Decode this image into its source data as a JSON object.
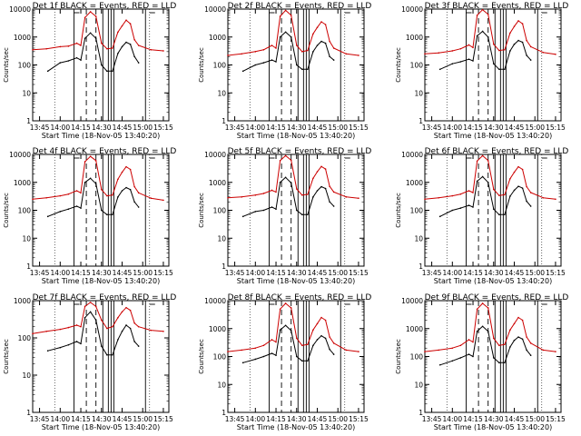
{
  "chart_data": [
    {
      "type": "line",
      "title": "Det 1f BLACK = Events, RED = LLD",
      "xlabel": "Start Time (18-Nov-05 13:40:20)",
      "ylabel": "Counts/sec",
      "xticks": [
        "13:45",
        "14:00",
        "14:15",
        "14:30",
        "14:45",
        "15:00",
        "15:15"
      ],
      "yticks": [
        "1",
        "10",
        "100",
        "1000",
        "10000"
      ],
      "yscale": "log",
      "ylim": [
        1,
        10000
      ],
      "series": [
        {
          "color": "#000000",
          "x": [
            "13:51",
            "14:00",
            "14:06",
            "14:12",
            "14:15",
            "14:18",
            "14:22",
            "14:26",
            "14:30",
            "14:34",
            "14:38",
            "14:42",
            "14:45",
            "14:48",
            "14:51",
            "14:54",
            "14:57"
          ],
          "y": [
            60,
            120,
            140,
            180,
            150,
            900,
            1400,
            900,
            100,
            60,
            60,
            260,
            450,
            650,
            550,
            200,
            120
          ]
        },
        {
          "color": "#cc0000",
          "x": [
            "13:40",
            "13:50",
            "14:00",
            "14:06",
            "14:12",
            "14:15",
            "14:18",
            "14:22",
            "14:26",
            "14:30",
            "14:34",
            "14:38",
            "14:42",
            "14:45",
            "14:48",
            "14:51",
            "14:54",
            "14:57",
            "15:06",
            "15:15"
          ],
          "y": [
            350,
            380,
            450,
            470,
            600,
            500,
            5000,
            8000,
            5500,
            600,
            380,
            400,
            1500,
            2500,
            4000,
            3000,
            800,
            500,
            350,
            320
          ]
        }
      ]
    },
    {
      "type": "line",
      "title": "Det 2f BLACK = Events, RED = LLD",
      "xlabel": "Start Time (18-Nov-05 13:40:20)",
      "ylabel": "Counts/sec",
      "xticks": [
        "13:45",
        "14:00",
        "14:15",
        "14:30",
        "14:45",
        "15:00",
        "15:15"
      ],
      "yticks": [
        "1",
        "10",
        "100",
        "1000",
        "10000"
      ],
      "yscale": "log",
      "ylim": [
        1,
        10000
      ],
      "series": [
        {
          "color": "#000000",
          "x": [
            "13:51",
            "14:00",
            "14:06",
            "14:12",
            "14:15",
            "14:18",
            "14:22",
            "14:26",
            "14:30",
            "14:34",
            "14:38",
            "14:42",
            "14:45",
            "14:48",
            "14:51",
            "14:54",
            "14:57"
          ],
          "y": [
            60,
            100,
            120,
            150,
            130,
            1000,
            1500,
            1000,
            100,
            70,
            70,
            300,
            500,
            700,
            600,
            200,
            150
          ]
        },
        {
          "color": "#cc0000",
          "x": [
            "13:40",
            "13:50",
            "14:00",
            "14:06",
            "14:12",
            "14:15",
            "14:18",
            "14:22",
            "14:26",
            "14:30",
            "14:34",
            "14:38",
            "14:42",
            "14:45",
            "14:48",
            "14:51",
            "14:54",
            "14:57",
            "15:06",
            "15:15"
          ],
          "y": [
            220,
            250,
            300,
            350,
            500,
            400,
            5500,
            9000,
            6000,
            500,
            300,
            330,
            1300,
            2200,
            3500,
            2800,
            700,
            400,
            250,
            220
          ]
        }
      ]
    },
    {
      "type": "line",
      "title": "Det 3f BLACK = Events, RED = LLD",
      "xlabel": "Start Time (18-Nov-05 13:40:20)",
      "ylabel": "Counts/sec",
      "xticks": [
        "13:45",
        "14:00",
        "14:15",
        "14:30",
        "14:45",
        "15:00",
        "15:15"
      ],
      "yticks": [
        "1",
        "10",
        "100",
        "1000",
        "10000"
      ],
      "yscale": "log",
      "ylim": [
        1,
        10000
      ],
      "series": [
        {
          "color": "#000000",
          "x": [
            "13:51",
            "14:00",
            "14:06",
            "14:12",
            "14:15",
            "14:18",
            "14:22",
            "14:26",
            "14:30",
            "14:34",
            "14:38",
            "14:42",
            "14:45",
            "14:48",
            "14:51",
            "14:54",
            "14:57"
          ],
          "y": [
            70,
            110,
            130,
            160,
            140,
            1100,
            1600,
            1000,
            110,
            70,
            70,
            320,
            550,
            750,
            650,
            220,
            150
          ]
        },
        {
          "color": "#cc0000",
          "x": [
            "13:40",
            "13:50",
            "14:00",
            "14:06",
            "14:12",
            "14:15",
            "14:18",
            "14:22",
            "14:26",
            "14:30",
            "14:34",
            "14:38",
            "14:42",
            "14:45",
            "14:48",
            "14:51",
            "14:54",
            "14:57",
            "15:06",
            "15:15"
          ],
          "y": [
            250,
            270,
            320,
            380,
            520,
            420,
            6000,
            9500,
            6500,
            550,
            330,
            350,
            1400,
            2400,
            3800,
            3000,
            750,
            450,
            280,
            240
          ]
        }
      ]
    },
    {
      "type": "line",
      "title": "Det 4f BLACK = Events, RED = LLD",
      "xlabel": "Start Time (18-Nov-05 13:40:20)",
      "ylabel": "Counts/sec",
      "xticks": [
        "13:45",
        "14:00",
        "14:15",
        "14:30",
        "14:45",
        "15:00",
        "15:15"
      ],
      "yticks": [
        "1",
        "10",
        "100",
        "1000",
        "10000"
      ],
      "yscale": "log",
      "ylim": [
        1,
        10000
      ],
      "series": [
        {
          "color": "#000000",
          "x": [
            "13:51",
            "14:00",
            "14:06",
            "14:12",
            "14:15",
            "14:18",
            "14:22",
            "14:26",
            "14:30",
            "14:34",
            "14:38",
            "14:42",
            "14:45",
            "14:48",
            "14:51",
            "14:54",
            "14:57"
          ],
          "y": [
            60,
            90,
            110,
            140,
            120,
            1000,
            1400,
            900,
            100,
            70,
            70,
            300,
            500,
            650,
            550,
            200,
            130
          ]
        },
        {
          "color": "#cc0000",
          "x": [
            "13:40",
            "13:50",
            "14:00",
            "14:06",
            "14:12",
            "14:15",
            "14:18",
            "14:22",
            "14:26",
            "14:30",
            "14:34",
            "14:38",
            "14:42",
            "14:45",
            "14:48",
            "14:51",
            "14:54",
            "14:57",
            "15:06",
            "15:15"
          ],
          "y": [
            250,
            280,
            330,
            380,
            500,
            420,
            5500,
            8500,
            6000,
            550,
            330,
            350,
            1300,
            2300,
            3600,
            2900,
            700,
            420,
            270,
            230
          ]
        }
      ]
    },
    {
      "type": "line",
      "title": "Det 5f BLACK = Events, RED = LLD",
      "xlabel": "Start Time (18-Nov-05 13:40:20)",
      "ylabel": "Counts/sec",
      "xticks": [
        "13:45",
        "14:00",
        "14:15",
        "14:30",
        "14:45",
        "15:00",
        "15:15"
      ],
      "yticks": [
        "1",
        "10",
        "100",
        "1000",
        "10000"
      ],
      "yscale": "log",
      "ylim": [
        1,
        10000
      ],
      "series": [
        {
          "color": "#000000",
          "x": [
            "13:51",
            "14:00",
            "14:06",
            "14:12",
            "14:15",
            "14:18",
            "14:22",
            "14:26",
            "14:30",
            "14:34",
            "14:38",
            "14:42",
            "14:45",
            "14:48",
            "14:51",
            "14:54",
            "14:57"
          ],
          "y": [
            60,
            90,
            100,
            130,
            110,
            1000,
            1500,
            950,
            100,
            70,
            70,
            300,
            500,
            700,
            600,
            200,
            140
          ]
        },
        {
          "color": "#cc0000",
          "x": [
            "13:40",
            "13:50",
            "14:00",
            "14:06",
            "14:12",
            "14:15",
            "14:18",
            "14:22",
            "14:26",
            "14:30",
            "14:34",
            "14:38",
            "14:42",
            "14:45",
            "14:48",
            "14:51",
            "14:54",
            "14:57",
            "15:06",
            "15:15"
          ],
          "y": [
            280,
            300,
            350,
            400,
            520,
            450,
            6000,
            9000,
            6200,
            580,
            350,
            370,
            1400,
            2400,
            3700,
            3000,
            720,
            450,
            300,
            270
          ]
        }
      ]
    },
    {
      "type": "line",
      "title": "Det 6f BLACK = Events, RED = LLD",
      "xlabel": "Start Time (18-Nov-05 13:40:20)",
      "ylabel": "Counts/sec",
      "xticks": [
        "13:45",
        "14:00",
        "14:15",
        "14:30",
        "14:45",
        "15:00",
        "15:15"
      ],
      "yticks": [
        "1",
        "10",
        "100",
        "1000",
        "10000"
      ],
      "yscale": "log",
      "ylim": [
        1,
        10000
      ],
      "series": [
        {
          "color": "#000000",
          "x": [
            "13:51",
            "14:00",
            "14:06",
            "14:12",
            "14:15",
            "14:18",
            "14:22",
            "14:26",
            "14:30",
            "14:34",
            "14:38",
            "14:42",
            "14:45",
            "14:48",
            "14:51",
            "14:54",
            "14:57"
          ],
          "y": [
            60,
            100,
            120,
            150,
            130,
            1100,
            1600,
            1000,
            110,
            70,
            70,
            320,
            520,
            720,
            620,
            210,
            140
          ]
        },
        {
          "color": "#cc0000",
          "x": [
            "13:40",
            "13:50",
            "14:00",
            "14:06",
            "14:12",
            "14:15",
            "14:18",
            "14:22",
            "14:26",
            "14:30",
            "14:34",
            "14:38",
            "14:42",
            "14:45",
            "14:48",
            "14:51",
            "14:54",
            "14:57",
            "15:06",
            "15:15"
          ],
          "y": [
            250,
            280,
            330,
            380,
            500,
            430,
            5800,
            9000,
            6000,
            560,
            340,
            360,
            1350,
            2300,
            3600,
            2900,
            700,
            430,
            280,
            250
          ]
        }
      ]
    },
    {
      "type": "line",
      "title": "Det 7f BLACK = Events, RED = LLD",
      "xlabel": "Start Time (18-Nov-05 13:40:20)",
      "ylabel": "Counts/sec",
      "xticks": [
        "13:45",
        "14:00",
        "14:15",
        "14:30",
        "14:45",
        "15:00",
        "15:15"
      ],
      "yticks": [
        "1",
        "10",
        "100",
        "1000"
      ],
      "yscale": "log",
      "ylim": [
        1,
        1000
      ],
      "series": [
        {
          "color": "#000000",
          "x": [
            "13:51",
            "14:00",
            "14:06",
            "14:12",
            "14:15",
            "14:18",
            "14:22",
            "14:26",
            "14:30",
            "14:34",
            "14:38",
            "14:42",
            "14:45",
            "14:48",
            "14:51",
            "14:54",
            "14:57"
          ],
          "y": [
            45,
            55,
            65,
            80,
            70,
            350,
            500,
            300,
            60,
            35,
            35,
            90,
            150,
            220,
            180,
            80,
            60
          ]
        },
        {
          "color": "#cc0000",
          "x": [
            "13:40",
            "13:50",
            "14:00",
            "14:06",
            "14:12",
            "14:15",
            "14:18",
            "14:22",
            "14:26",
            "14:30",
            "14:34",
            "14:38",
            "14:42",
            "14:45",
            "14:48",
            "14:51",
            "14:54",
            "14:57",
            "15:06",
            "15:15"
          ],
          "y": [
            130,
            150,
            170,
            190,
            220,
            200,
            700,
            900,
            700,
            300,
            180,
            200,
            350,
            500,
            650,
            550,
            250,
            200,
            160,
            150
          ]
        }
      ]
    },
    {
      "type": "line",
      "title": "Det 8f BLACK = Events, RED = LLD",
      "xlabel": "Start Time (18-Nov-05 13:40:20)",
      "ylabel": "Counts/sec",
      "xticks": [
        "13:45",
        "14:00",
        "14:15",
        "14:30",
        "14:45",
        "15:00",
        "15:15"
      ],
      "yticks": [
        "1",
        "10",
        "100",
        "1000",
        "10000"
      ],
      "yscale": "log",
      "ylim": [
        1,
        10000
      ],
      "series": [
        {
          "color": "#000000",
          "x": [
            "13:51",
            "14:00",
            "14:06",
            "14:12",
            "14:15",
            "14:18",
            "14:22",
            "14:26",
            "14:30",
            "14:34",
            "14:38",
            "14:42",
            "14:45",
            "14:48",
            "14:51",
            "14:54",
            "14:57"
          ],
          "y": [
            60,
            80,
            100,
            130,
            110,
            900,
            1300,
            850,
            100,
            70,
            70,
            250,
            400,
            550,
            450,
            180,
            120
          ]
        },
        {
          "color": "#cc0000",
          "x": [
            "13:40",
            "13:50",
            "14:00",
            "14:06",
            "14:12",
            "14:15",
            "14:18",
            "14:22",
            "14:26",
            "14:30",
            "14:34",
            "14:38",
            "14:42",
            "14:45",
            "14:48",
            "14:51",
            "14:54",
            "14:57",
            "15:06",
            "15:15"
          ],
          "y": [
            150,
            170,
            200,
            250,
            400,
            330,
            5000,
            8000,
            5500,
            450,
            250,
            270,
            900,
            1500,
            2500,
            2000,
            500,
            300,
            170,
            150
          ]
        }
      ]
    },
    {
      "type": "line",
      "title": "Det 9f BLACK = Events, RED = LLD",
      "xlabel": "Start Time (18-Nov-05 13:40:20)",
      "ylabel": "Counts/sec",
      "xticks": [
        "13:45",
        "14:00",
        "14:15",
        "14:30",
        "14:45",
        "15:00",
        "15:15"
      ],
      "yticks": [
        "1",
        "10",
        "100",
        "1000",
        "10000"
      ],
      "yscale": "log",
      "ylim": [
        1,
        10000
      ],
      "series": [
        {
          "color": "#000000",
          "x": [
            "13:51",
            "14:00",
            "14:06",
            "14:12",
            "14:15",
            "14:18",
            "14:22",
            "14:26",
            "14:30",
            "14:34",
            "14:38",
            "14:42",
            "14:45",
            "14:48",
            "14:51",
            "14:54",
            "14:57"
          ],
          "y": [
            50,
            70,
            90,
            120,
            100,
            800,
            1200,
            800,
            90,
            60,
            60,
            220,
            380,
            500,
            420,
            170,
            110
          ]
        },
        {
          "color": "#cc0000",
          "x": [
            "13:40",
            "13:50",
            "14:00",
            "14:06",
            "14:12",
            "14:15",
            "14:18",
            "14:22",
            "14:26",
            "14:30",
            "14:34",
            "14:38",
            "14:42",
            "14:45",
            "14:48",
            "14:51",
            "14:54",
            "14:57",
            "15:06",
            "15:15"
          ],
          "y": [
            150,
            170,
            200,
            250,
            400,
            330,
            5000,
            8000,
            5500,
            450,
            250,
            270,
            900,
            1500,
            2500,
            2000,
            500,
            300,
            170,
            150
          ]
        }
      ]
    }
  ]
}
